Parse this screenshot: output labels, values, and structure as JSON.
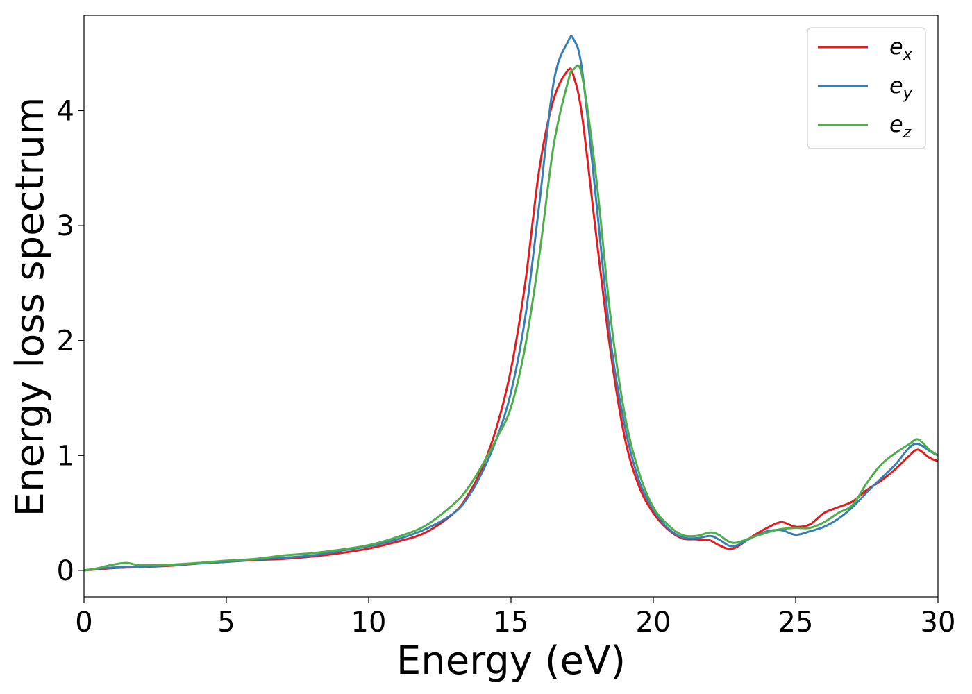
{
  "chart_data": {
    "type": "line",
    "title": "",
    "xlabel": "Energy (eV)",
    "ylabel": "Energy loss spectrum",
    "xlim": [
      0,
      30
    ],
    "ylim": [
      -0.23,
      4.83
    ],
    "xticks": [
      0,
      5,
      10,
      15,
      20,
      25,
      30
    ],
    "yticks": [
      0,
      1,
      2,
      3,
      4
    ],
    "grid": false,
    "legend_position": "top-right",
    "x": [
      0,
      0.5,
      1,
      1.5,
      2,
      3,
      4,
      5,
      6,
      7,
      8,
      9,
      10,
      11,
      12,
      13,
      13.5,
      14,
      14.5,
      15,
      15.5,
      16,
      16.5,
      17,
      17.2,
      17.5,
      18,
      18.5,
      19,
      19.5,
      20,
      20.5,
      21,
      21.5,
      22,
      22.3,
      22.8,
      23.5,
      24,
      24.5,
      25,
      25.5,
      26,
      26.5,
      27,
      27.5,
      28,
      28.5,
      29,
      29.3,
      29.7,
      30
    ],
    "series": [
      {
        "name": "e_x",
        "label_base": "e",
        "label_sub": "x",
        "color": "#e41a1c",
        "values": [
          0,
          0.01,
          0.02,
          0.025,
          0.03,
          0.04,
          0.06,
          0.075,
          0.09,
          0.1,
          0.12,
          0.15,
          0.19,
          0.25,
          0.33,
          0.5,
          0.66,
          0.9,
          1.25,
          1.75,
          2.5,
          3.5,
          4.1,
          4.35,
          4.3,
          3.95,
          2.9,
          1.9,
          1.15,
          0.73,
          0.5,
          0.36,
          0.28,
          0.27,
          0.26,
          0.22,
          0.19,
          0.3,
          0.37,
          0.42,
          0.38,
          0.4,
          0.5,
          0.55,
          0.6,
          0.7,
          0.78,
          0.88,
          1.0,
          1.05,
          0.98,
          0.95
        ]
      },
      {
        "name": "e_y",
        "label_base": "e",
        "label_sub": "y",
        "color": "#377eb8",
        "values": [
          0,
          0.015,
          0.025,
          0.03,
          0.03,
          0.045,
          0.06,
          0.075,
          0.095,
          0.11,
          0.13,
          0.17,
          0.21,
          0.27,
          0.36,
          0.5,
          0.64,
          0.86,
          1.15,
          1.55,
          2.2,
          3.2,
          4.25,
          4.6,
          4.62,
          4.35,
          3.2,
          2.0,
          1.25,
          0.78,
          0.53,
          0.37,
          0.29,
          0.28,
          0.3,
          0.27,
          0.21,
          0.29,
          0.34,
          0.35,
          0.31,
          0.34,
          0.38,
          0.45,
          0.55,
          0.68,
          0.8,
          0.92,
          1.07,
          1.1,
          1.04,
          1.0
        ]
      },
      {
        "name": "e_z",
        "label_base": "e",
        "label_sub": "z",
        "color": "#4daf4a",
        "values": [
          0,
          0.02,
          0.05,
          0.065,
          0.045,
          0.05,
          0.065,
          0.085,
          0.1,
          0.13,
          0.15,
          0.18,
          0.22,
          0.29,
          0.39,
          0.58,
          0.72,
          0.92,
          1.15,
          1.42,
          1.95,
          2.75,
          3.7,
          4.25,
          4.36,
          4.3,
          3.4,
          2.2,
          1.35,
          0.85,
          0.55,
          0.4,
          0.31,
          0.3,
          0.33,
          0.31,
          0.24,
          0.29,
          0.33,
          0.36,
          0.37,
          0.37,
          0.42,
          0.5,
          0.57,
          0.76,
          0.92,
          1.02,
          1.1,
          1.14,
          1.05,
          1.0
        ]
      }
    ]
  }
}
